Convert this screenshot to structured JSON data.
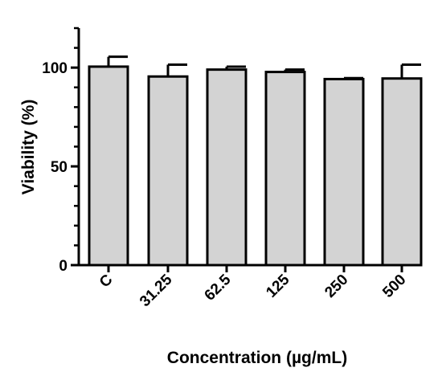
{
  "chart_data": {
    "type": "bar",
    "categories": [
      "C",
      "31.25",
      "62.5",
      "125",
      "250",
      "500"
    ],
    "values": [
      100.5,
      95.5,
      99,
      97.8,
      94.2,
      94.5
    ],
    "errors": [
      5,
      6,
      1.5,
      1.2,
      0.5,
      7
    ],
    "xlabel": "Concentration (µg/mL)",
    "ylabel": "Viability (%)",
    "ylim": [
      0,
      120
    ],
    "yticks": [
      0,
      50,
      100
    ],
    "bar_color": "#d3d3d3",
    "grid": false
  }
}
